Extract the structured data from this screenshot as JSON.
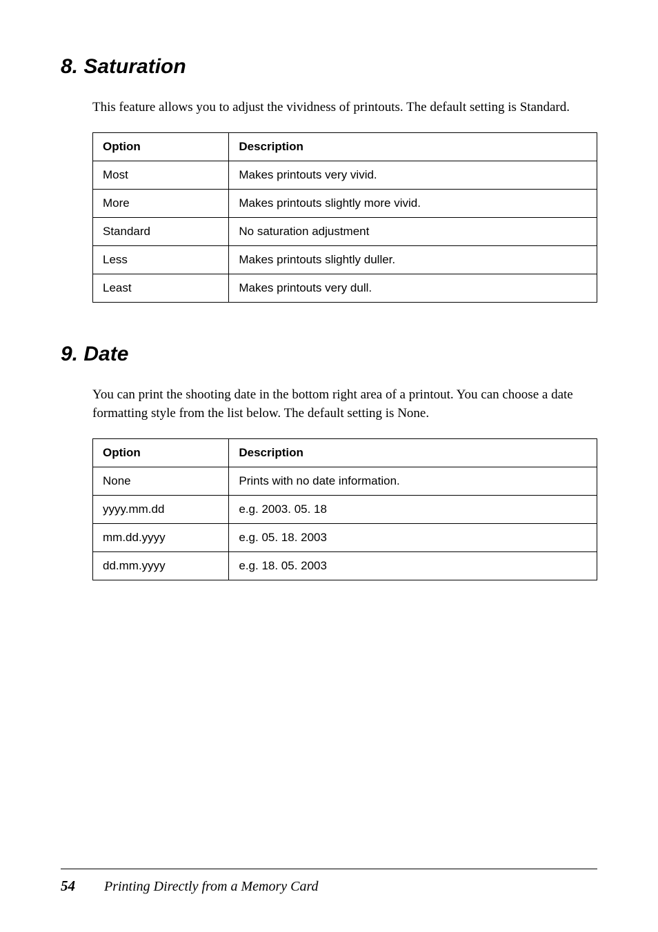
{
  "section1": {
    "heading": "8. Saturation",
    "paragraph": "This feature allows you to adjust the vividness of printouts. The default setting is Standard.",
    "table": {
      "headers": [
        "Option",
        "Description"
      ],
      "rows": [
        [
          "Most",
          "Makes printouts very vivid."
        ],
        [
          "More",
          "Makes printouts slightly more vivid."
        ],
        [
          "Standard",
          "No saturation adjustment"
        ],
        [
          "Less",
          "Makes printouts slightly duller."
        ],
        [
          "Least",
          "Makes printouts very dull."
        ]
      ]
    }
  },
  "section2": {
    "heading": "9. Date",
    "paragraph": "You can print the shooting date in the bottom right area of a printout. You can choose a date formatting style from the list below. The default setting is None.",
    "table": {
      "headers": [
        "Option",
        "Description"
      ],
      "rows": [
        [
          "None",
          "Prints with no date information."
        ],
        [
          "yyyy.mm.dd",
          "e.g. 2003. 05. 18"
        ],
        [
          "mm.dd.yyyy",
          "e.g. 05. 18. 2003"
        ],
        [
          "dd.mm.yyyy",
          "e.g. 18. 05. 2003"
        ]
      ]
    }
  },
  "footer": {
    "page": "54",
    "title": "Printing Directly from a Memory Card"
  }
}
